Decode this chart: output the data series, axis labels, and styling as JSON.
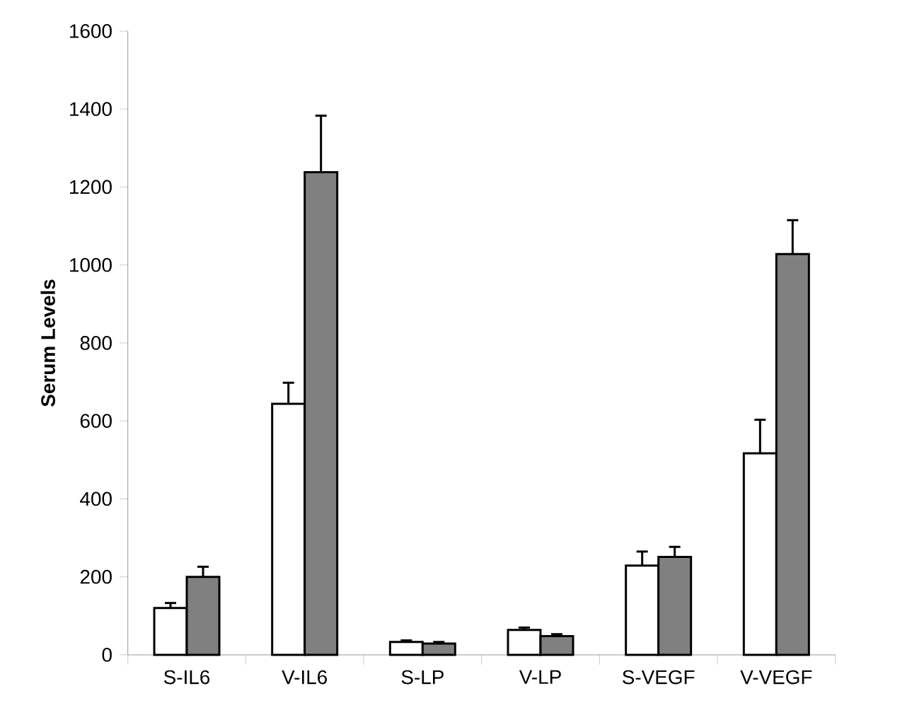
{
  "chart_data": {
    "type": "bar",
    "ylabel": "**Serum Levels**",
    "categories": [
      "S-IL6",
      "V-IL6",
      "S-LP",
      "V-LP",
      "S-VEGF",
      "V-VEGF"
    ],
    "series": [
      {
        "color": "#ffffff",
        "values": [
          120,
          644,
          33,
          64,
          229,
          517
        ],
        "errors": [
          [
            120,
            133
          ],
          [
            644,
            698
          ],
          [
            33,
            37
          ],
          [
            64,
            70
          ],
          [
            229,
            265
          ],
          [
            517,
            603
          ]
        ]
      },
      {
        "color": "#808080",
        "values": [
          200,
          1238,
          29,
          48,
          251,
          1028
        ],
        "errors": [
          [
            200,
            226
          ],
          [
            1238,
            1383
          ],
          [
            29,
            33
          ],
          [
            48,
            53
          ],
          [
            251,
            277
          ],
          [
            1028,
            1115
          ]
        ]
      }
    ],
    "ylim": [
      0,
      1600
    ],
    "yticks": [
      0,
      200,
      400,
      600,
      800,
      1000,
      1200,
      1400,
      1600
    ]
  }
}
